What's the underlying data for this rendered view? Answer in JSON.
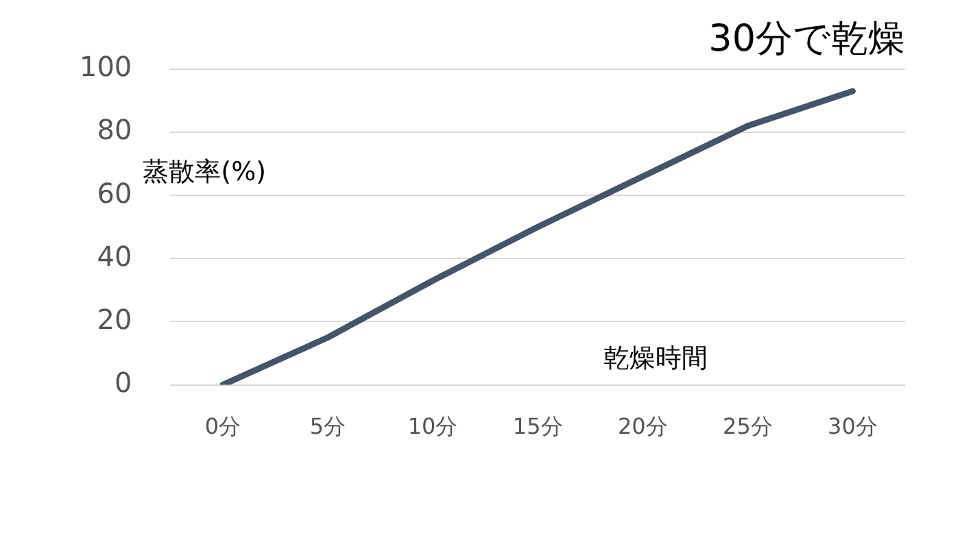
{
  "chart_data": {
    "type": "line",
    "title": "30分で乾燥",
    "xlabel": "乾燥時間",
    "ylabel": "蒸散率(%)",
    "categories": [
      "0分",
      "5分",
      "10分",
      "15分",
      "20分",
      "25分",
      "30分"
    ],
    "series": [
      {
        "color": "#44546a",
        "values": [
          0,
          15,
          33,
          50,
          66,
          82,
          93
        ]
      }
    ],
    "ylim": [
      0,
      100
    ],
    "yticks": [
      0,
      20,
      40,
      60,
      80,
      100
    ],
    "grid": "y",
    "legend": false,
    "marker": "none"
  }
}
